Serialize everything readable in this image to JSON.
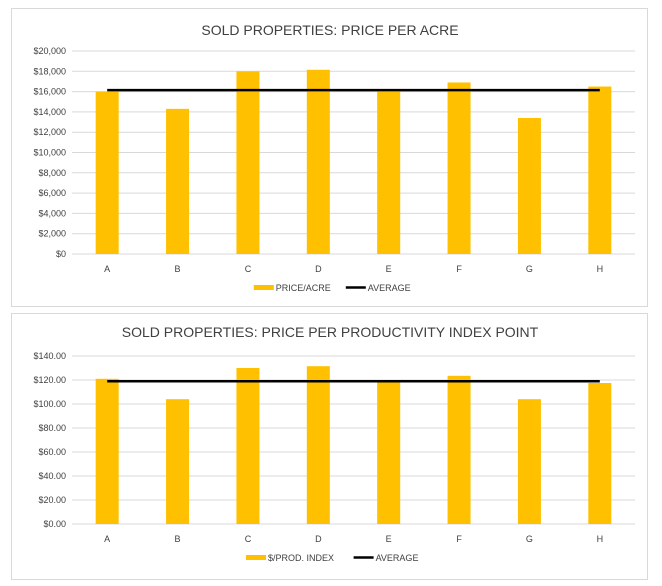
{
  "chart_data": [
    {
      "type": "bar",
      "title": "SOLD PROPERTIES: PRICE PER ACRE",
      "categories": [
        "A",
        "B",
        "C",
        "D",
        "E",
        "F",
        "G",
        "H"
      ],
      "series": [
        {
          "name": "PRICE/ACRE",
          "type": "bar",
          "color": "#FFC000",
          "values": [
            16000,
            14300,
            18000,
            18150,
            16000,
            16900,
            13400,
            16500
          ]
        },
        {
          "name": "AVERAGE",
          "type": "line",
          "color": "#000000",
          "values": [
            16150,
            16150,
            16150,
            16150,
            16150,
            16150,
            16150,
            16150
          ]
        }
      ],
      "ylim": [
        0,
        20000
      ],
      "yticks": [
        {
          "value": 0,
          "label": "$0"
        },
        {
          "value": 2000,
          "label": "$2,000"
        },
        {
          "value": 4000,
          "label": "$4,000"
        },
        {
          "value": 6000,
          "label": "$6,000"
        },
        {
          "value": 8000,
          "label": "$8,000"
        },
        {
          "value": 10000,
          "label": "$10,000"
        },
        {
          "value": 12000,
          "label": "$12,000"
        },
        {
          "value": 14000,
          "label": "$14,000"
        },
        {
          "value": 16000,
          "label": "$16,000"
        },
        {
          "value": 18000,
          "label": "$18,000"
        },
        {
          "value": 20000,
          "label": "$20,000"
        }
      ],
      "grid": true,
      "legend": "bottom",
      "gridColor": "#d9d9d9"
    },
    {
      "type": "bar",
      "title": "SOLD PROPERTIES: PRICE PER PRODUCTIVITY INDEX  POINT",
      "categories": [
        "A",
        "B",
        "C",
        "D",
        "E",
        "F",
        "G",
        "H"
      ],
      "series": [
        {
          "name": "$/PROD. INDEX",
          "type": "bar",
          "color": "#FFC000",
          "values": [
            121,
            104,
            130,
            131.5,
            119.5,
            123.5,
            104,
            117.5
          ]
        },
        {
          "name": "AVERAGE",
          "type": "line",
          "color": "#000000",
          "values": [
            119,
            119,
            119,
            119,
            119,
            119,
            119,
            119
          ]
        }
      ],
      "ylim": [
        0,
        140
      ],
      "yticks": [
        {
          "value": 0,
          "label": "$0.00"
        },
        {
          "value": 20,
          "label": "$20.00"
        },
        {
          "value": 40,
          "label": "$40.00"
        },
        {
          "value": 60,
          "label": "$60.00"
        },
        {
          "value": 80,
          "label": "$80.00"
        },
        {
          "value": 100,
          "label": "$100.00"
        },
        {
          "value": 120,
          "label": "$120.00"
        },
        {
          "value": 140,
          "label": "$140.00"
        }
      ],
      "grid": true,
      "legend": "bottom",
      "gridColor": "#d9d9d9"
    }
  ]
}
